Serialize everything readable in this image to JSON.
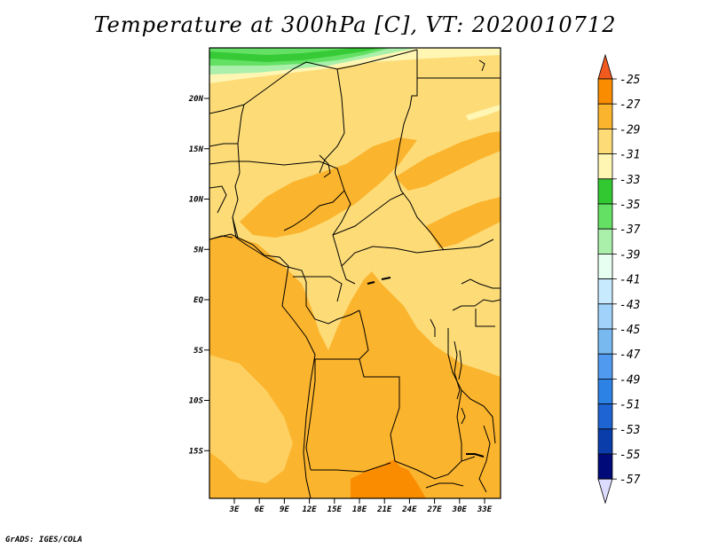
{
  "title": "Temperature at 300hPa [C], VT: 2020010712",
  "footer": "GrADS: IGES/COLA",
  "map": {
    "lat_labels": [
      "20N",
      "15N",
      "10N",
      "5N",
      "EQ",
      "5S",
      "10S",
      "15S"
    ],
    "lon_labels": [
      "3E",
      "6E",
      "9E",
      "12E",
      "15E",
      "18E",
      "21E",
      "24E",
      "27E",
      "30E",
      "33E"
    ]
  },
  "colorbar": {
    "levels": [
      "-25",
      "-27",
      "-29",
      "-31",
      "-33",
      "-35",
      "-37",
      "-39",
      "-41",
      "-43",
      "-45",
      "-47",
      "-49",
      "-51",
      "-53",
      "-55",
      "-57"
    ],
    "colors": [
      "#f05a1e",
      "#fa8c00",
      "#fbb42d",
      "#fddc78",
      "#fff6b4",
      "#32c832",
      "#64e164",
      "#aaf0aa",
      "#e6fff0",
      "#c8eaff",
      "#a0d2fa",
      "#78b9f0",
      "#509bf0",
      "#2d82e6",
      "#1e64d2",
      "#0a3caa",
      "#000a78",
      "#dcdcff"
    ]
  }
}
